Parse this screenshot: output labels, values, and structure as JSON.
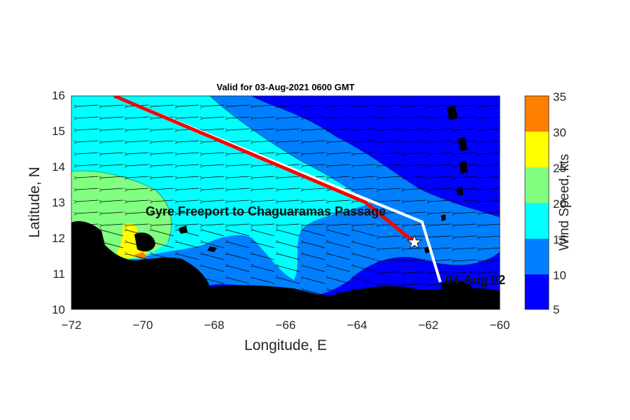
{
  "title": "Valid for 03-Aug-2021 0600 GMT",
  "route_label": "Gyre Freeport to Chaguaramas Passage",
  "date_label": "04-Aug 02",
  "xlabel": "Longitude, E",
  "ylabel": "Latitude, N",
  "colorbar_label": "Wind Speed, kts",
  "xticks": [
    "−72",
    "−70",
    "−68",
    "−66",
    "−64",
    "−62",
    "−60"
  ],
  "yticks": [
    "10",
    "11",
    "12",
    "13",
    "14",
    "15",
    "16"
  ],
  "cbticks": [
    "5",
    "10",
    "15",
    "20",
    "25",
    "30",
    "35"
  ],
  "colors": {
    "band_5_10": "#0000ff",
    "band_10_15": "#0080ff",
    "band_15_20": "#00ffff",
    "band_20_25": "#80ff80",
    "band_25_30": "#ffff00",
    "band_30_35": "#ff8000",
    "land": "#000000",
    "route_actual": "#ff0000",
    "route_planned": "#ffffff"
  },
  "chart_data": {
    "type": "heatmap",
    "xlim": [
      -72,
      -60
    ],
    "ylim": [
      10,
      16
    ],
    "colorbar_range": [
      5,
      35
    ],
    "colorbar_bands": [
      [
        5,
        10
      ],
      [
        10,
        15
      ],
      [
        15,
        20
      ],
      [
        20,
        25
      ],
      [
        25,
        30
      ],
      [
        30,
        35
      ]
    ],
    "wind_direction": "from east (arrows pointing west)",
    "route_planned_white": [
      [
        -70.9,
        16.0
      ],
      [
        -63.8,
        13.1
      ],
      [
        -62.2,
        12.45
      ],
      [
        -61.7,
        10.7
      ]
    ],
    "route_actual_red": [
      [
        -70.9,
        16.0
      ],
      [
        -63.8,
        13.0
      ],
      [
        -62.4,
        11.85
      ]
    ],
    "current_position_marker": [
      -62.4,
      11.85
    ]
  }
}
